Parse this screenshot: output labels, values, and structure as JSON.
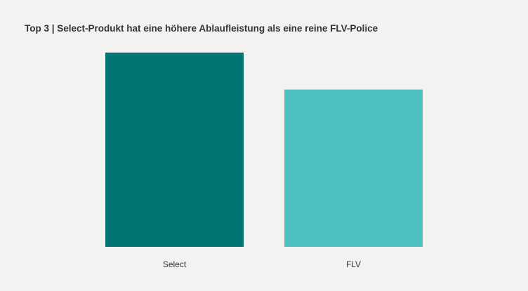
{
  "chart_data": {
    "type": "bar",
    "title": "Top 3 | Select-Produkt hat eine höhere Ablaufleistung als eine reine FLV-Police",
    "categories": [
      "Select",
      "FLV"
    ],
    "values": [
      100,
      81
    ],
    "value_unit": "relative (Select = 100)",
    "colors": [
      "#017574",
      "#4dc1c2"
    ],
    "xlabel": "",
    "ylabel": "",
    "ylim": [
      0,
      100
    ],
    "grid": false,
    "legend": "none"
  }
}
